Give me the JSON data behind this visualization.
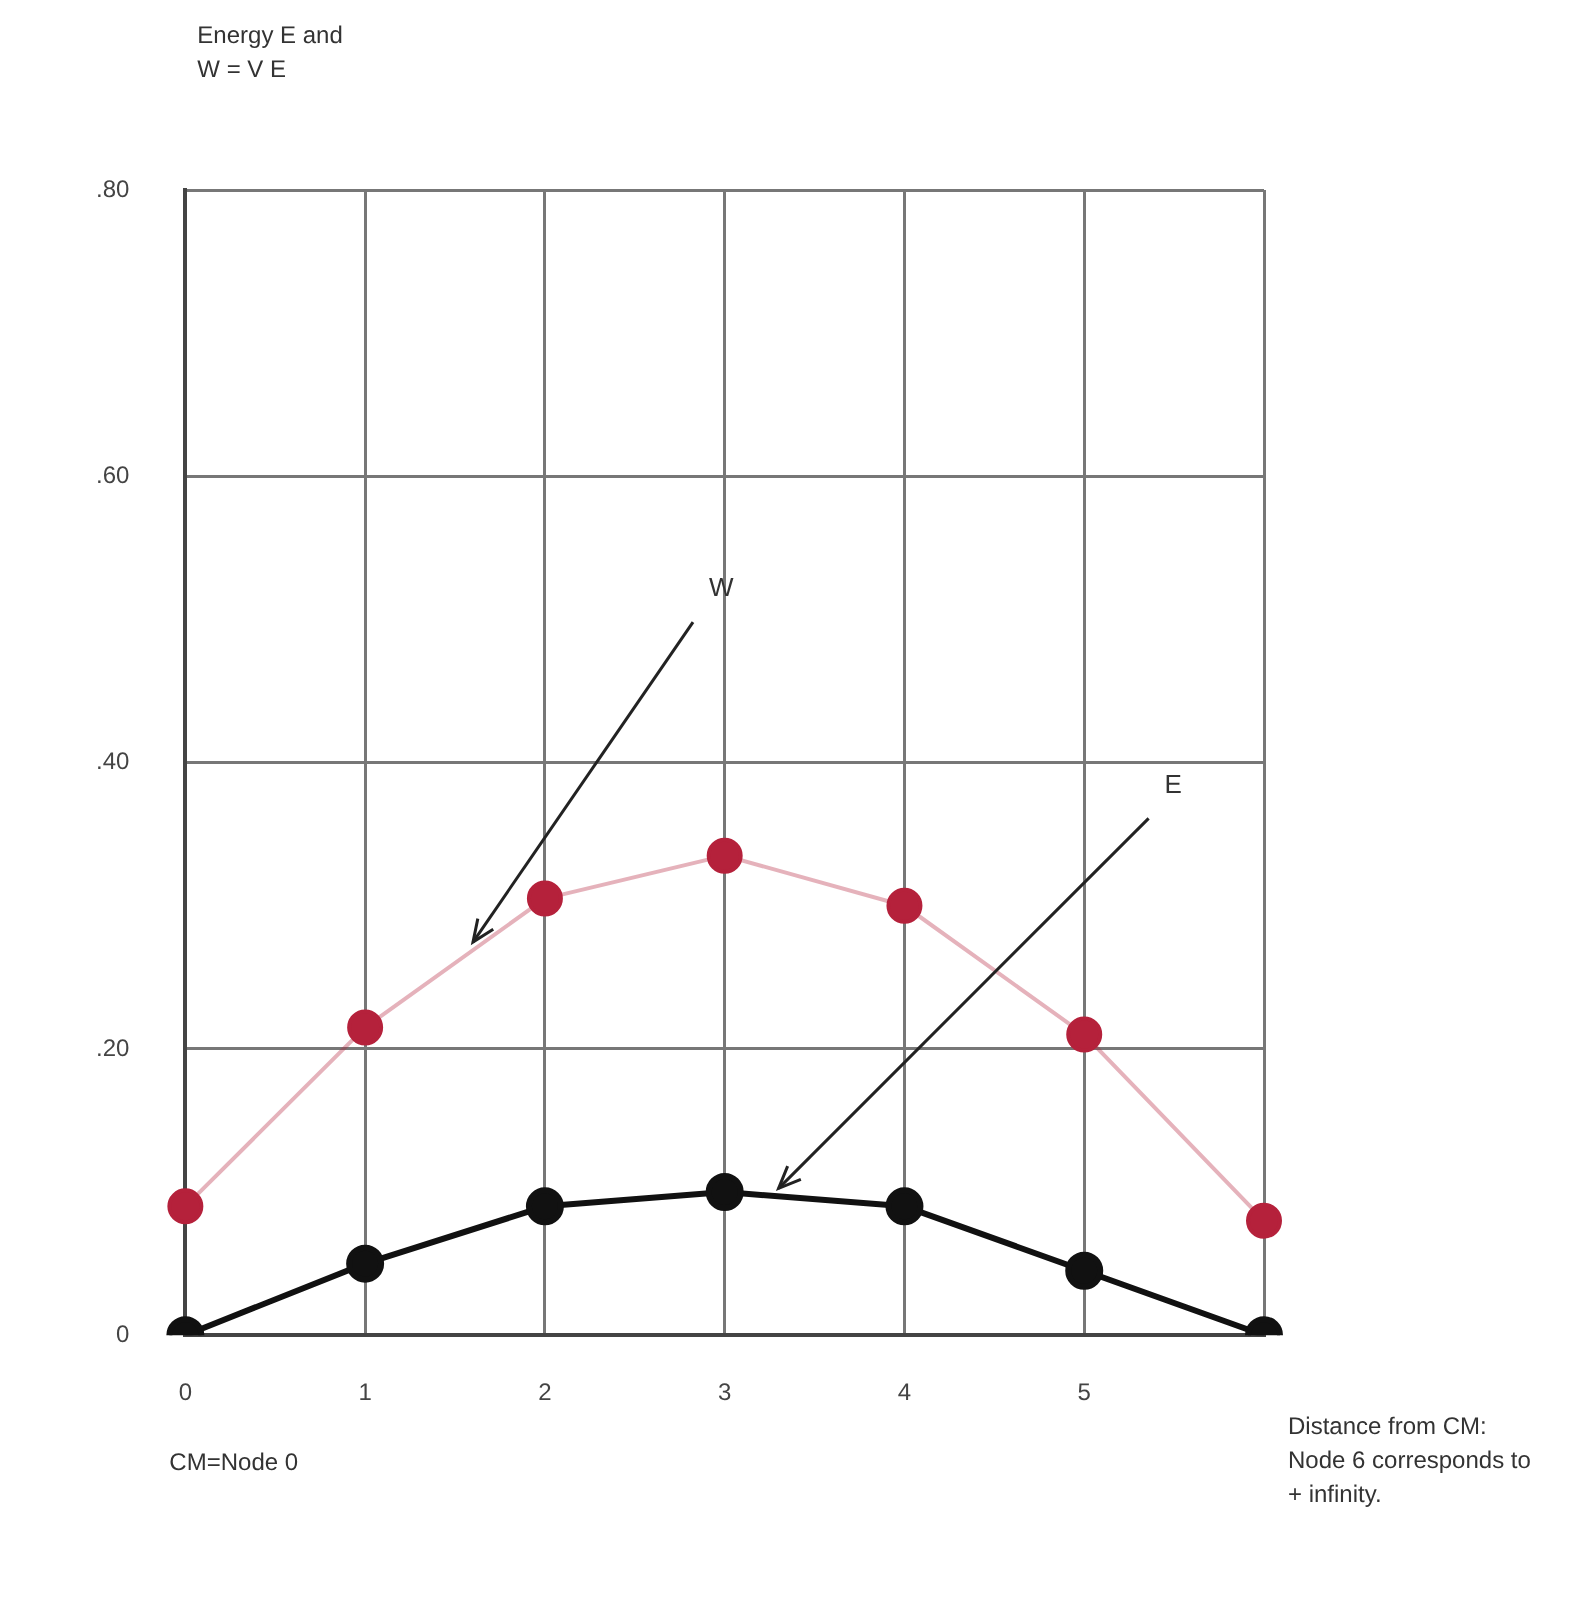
{
  "chart_data": {
    "type": "line",
    "xlabel": "Distance from CM: Node 6 corresponds to + infinity.",
    "categories": [
      "0",
      "1",
      "2",
      "3",
      "4",
      "5",
      null
    ],
    "series": [
      {
        "name": "W",
        "color": "#b5213b",
        "values": [
          0.09,
          0.215,
          0.305,
          0.335,
          0.3,
          0.21,
          0.08
        ]
      },
      {
        "name": "E",
        "color": "#111111",
        "values": [
          0,
          0.05,
          0.09,
          0.1,
          0.09,
          0.045,
          0
        ]
      }
    ],
    "annotations": [
      "Energy E and W = V E",
      "CM=Node 0"
    ],
    "ylim": [
      0,
      0.8
    ],
    "yticks": [
      {
        "value": 0,
        "label": "0"
      },
      {
        "value": 0.2,
        "label": ".20"
      },
      {
        "value": 0.4,
        "label": ".40"
      },
      {
        "value": 0.6,
        "label": ".60"
      },
      {
        "value": 0.8,
        "label": ".80"
      }
    ],
    "grid": true,
    "legend": false,
    "marker": "circle",
    "line_style": "solid"
  }
}
